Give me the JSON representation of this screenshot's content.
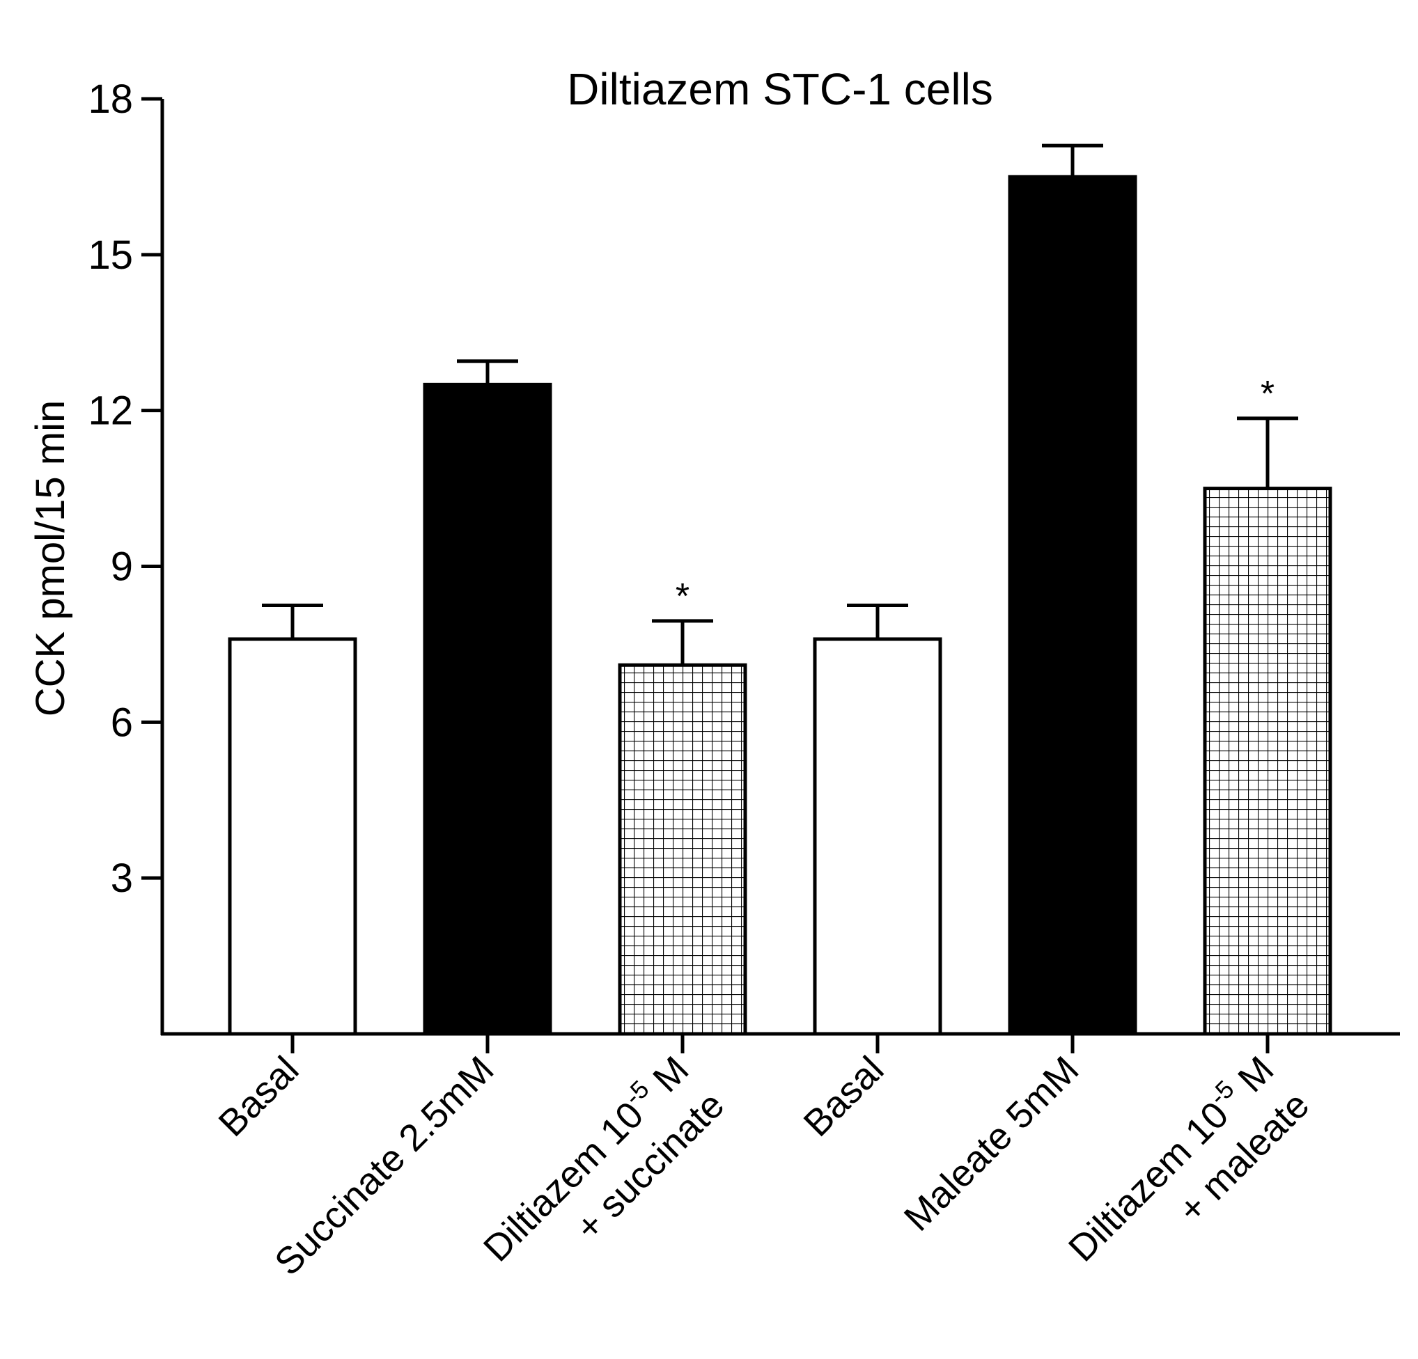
{
  "chart_data": {
    "type": "bar",
    "title": "Diltiazem STC-1 cells",
    "xlabel": "",
    "ylabel": "CCK pmol/15 min",
    "ylim": [
      0,
      18
    ],
    "yticks": [
      "3",
      "6",
      "9",
      "12",
      "15",
      "18"
    ],
    "grid": false,
    "legend": "none",
    "categories": [
      {
        "line1": "Basal",
        "line2": "",
        "exp": "",
        "after": ""
      },
      {
        "line1": "Succinate 2.5mM",
        "line2": "",
        "exp": "",
        "after": ""
      },
      {
        "line1": "Diltiazem 10",
        "exp": "-5",
        "after": " M",
        "line2": "+ succinate"
      },
      {
        "line1": "Basal",
        "line2": "",
        "exp": "",
        "after": ""
      },
      {
        "line1": "Maleate 5mM",
        "line2": "",
        "exp": "",
        "after": ""
      },
      {
        "line1": "Diltiazem 10",
        "exp": "-5",
        "after": " M",
        "line2": "+ maleate"
      }
    ],
    "values": [
      7.6,
      12.5,
      7.1,
      7.6,
      16.5,
      10.5
    ],
    "errors": [
      0.65,
      0.45,
      0.85,
      0.65,
      0.6,
      1.35
    ],
    "fills": [
      "white",
      "black",
      "grid",
      "white",
      "black",
      "grid"
    ],
    "annotations": [
      "",
      "",
      "*",
      "",
      "",
      "*"
    ]
  }
}
